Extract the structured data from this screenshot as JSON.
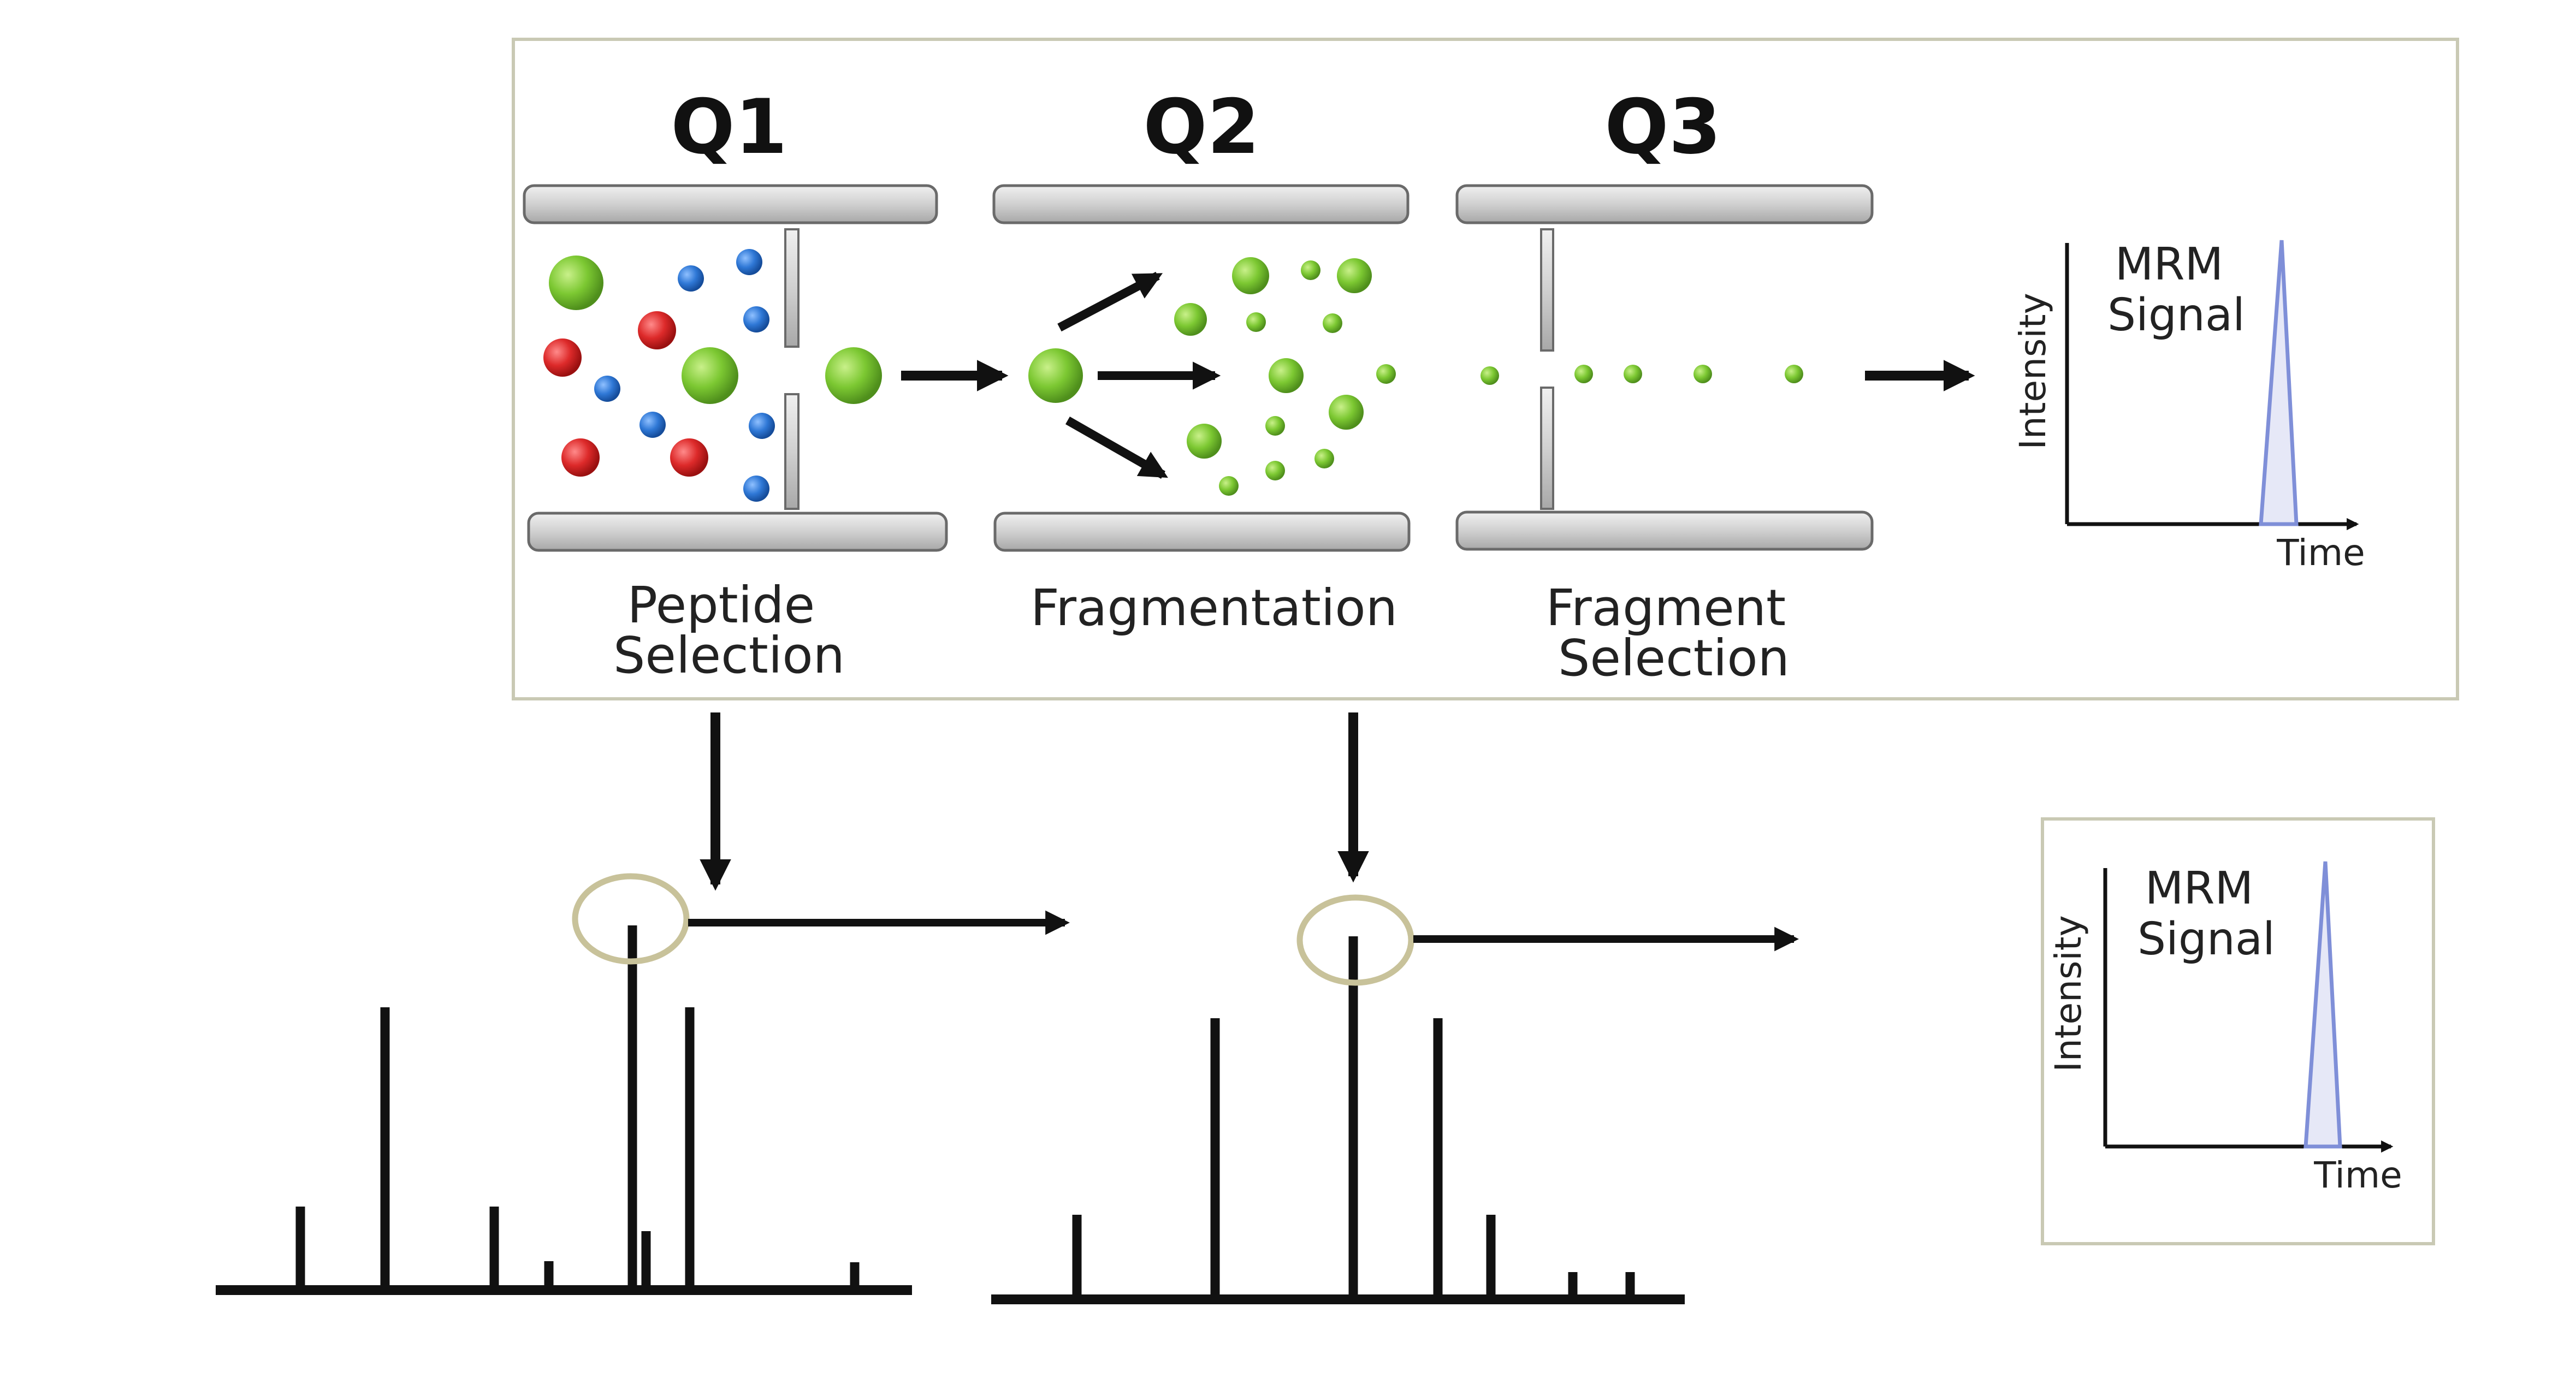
{
  "stages": [
    {
      "id": "q1",
      "title": "Q1",
      "caption_lines": [
        "Peptide",
        "Selection"
      ]
    },
    {
      "id": "q2",
      "title": "Q2",
      "caption_lines": [
        "Fragmentation"
      ]
    },
    {
      "id": "q3",
      "title": "Q3",
      "caption_lines": [
        "Fragment",
        "Selection"
      ]
    }
  ],
  "mrm_top": {
    "label_lines": [
      "MRM",
      "Signal"
    ],
    "y_axis_label": "Intensity",
    "x_axis_label": "Time"
  },
  "mrm_bottom": {
    "label_lines": [
      "MRM",
      "Signal"
    ],
    "y_axis_label": "Intensity",
    "x_axis_label": "Time"
  },
  "colors": {
    "peptide_green": "#6fbf2a",
    "ion_red": "#d7262c",
    "ion_blue": "#2a6fd1",
    "fragment_green": "#8cc63f",
    "plate_gray": "#d2d2d2",
    "highlight_circle": "#c8c29a",
    "signal_blue": "#7f8fd8"
  }
}
